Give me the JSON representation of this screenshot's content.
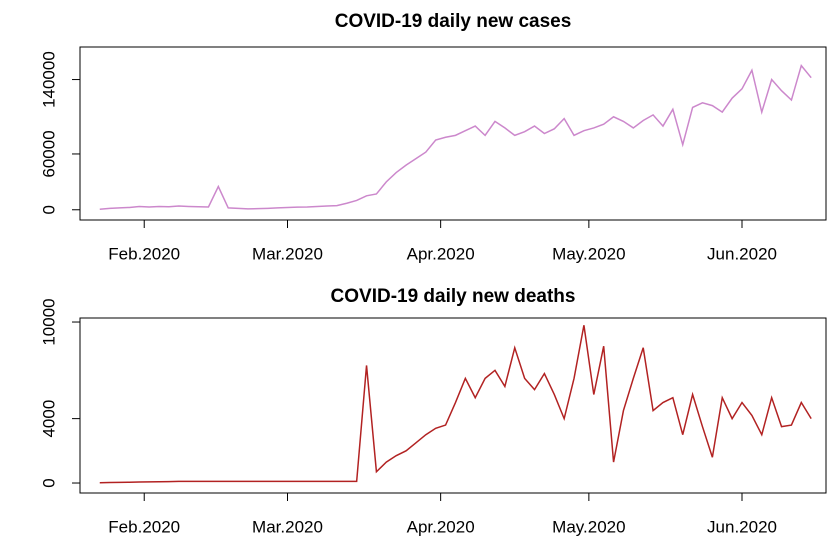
{
  "chart_data": [
    {
      "type": "line",
      "title": "COVID-19 daily new cases",
      "x": [
        22,
        24,
        26,
        28,
        30,
        32,
        34,
        36,
        38,
        40,
        42,
        44,
        46,
        48,
        50,
        52,
        54,
        56,
        58,
        60,
        62,
        64,
        66,
        68,
        70,
        72,
        74,
        76,
        78,
        80,
        82,
        84,
        86,
        88,
        90,
        92,
        94,
        96,
        98,
        100,
        102,
        104,
        106,
        108,
        110,
        112,
        114,
        116,
        118,
        120,
        122,
        124,
        126,
        128,
        130,
        132,
        134,
        136,
        138,
        140,
        142,
        144,
        146,
        148,
        150,
        152,
        154,
        156,
        158,
        160,
        162,
        164,
        166
      ],
      "series": [
        {
          "name": "cases",
          "color": "#cc88cc",
          "values": [
            600,
            1500,
            2000,
            2500,
            3500,
            3000,
            3500,
            3200,
            4000,
            3500,
            3200,
            3000,
            25000,
            2000,
            1500,
            1000,
            1200,
            1500,
            2000,
            2500,
            2800,
            3000,
            3500,
            4000,
            4500,
            7000,
            10000,
            15000,
            17000,
            30000,
            40000,
            48000,
            55000,
            62000,
            75000,
            78000,
            80000,
            85000,
            90000,
            80000,
            95000,
            88000,
            80000,
            84000,
            90000,
            82000,
            87000,
            98000,
            80000,
            85000,
            88000,
            92000,
            100000,
            95000,
            88000,
            96000,
            102000,
            90000,
            108000,
            70000,
            110000,
            115000,
            112000,
            105000,
            120000,
            130000,
            150000,
            105000,
            140000,
            128000,
            118000,
            155000,
            142000
          ]
        }
      ],
      "xlim": [
        18,
        169
      ],
      "xticks": [
        {
          "value": 31,
          "label": "Feb.2020"
        },
        {
          "value": 60,
          "label": "Mar.2020"
        },
        {
          "value": 91,
          "label": "Apr.2020"
        },
        {
          "value": 121,
          "label": "May.2020"
        },
        {
          "value": 152,
          "label": "Jun.2020"
        }
      ],
      "ylim": [
        -11000,
        175000
      ],
      "yticks": [
        0,
        60000,
        140000
      ]
    },
    {
      "type": "line",
      "title": "COVID-19 daily new deaths",
      "x": [
        22,
        24,
        26,
        28,
        30,
        32,
        34,
        36,
        38,
        40,
        42,
        44,
        46,
        48,
        50,
        52,
        54,
        56,
        58,
        60,
        62,
        64,
        66,
        68,
        70,
        72,
        74,
        76,
        78,
        80,
        82,
        84,
        86,
        88,
        90,
        92,
        94,
        96,
        98,
        100,
        102,
        104,
        106,
        108,
        110,
        112,
        114,
        116,
        118,
        120,
        122,
        124,
        126,
        128,
        130,
        132,
        134,
        136,
        138,
        140,
        142,
        144,
        146,
        148,
        150,
        152,
        154,
        156,
        158,
        160,
        162,
        164,
        166
      ],
      "series": [
        {
          "name": "deaths",
          "color": "#b22222",
          "values": [
            20,
            30,
            40,
            50,
            60,
            70,
            80,
            90,
            100,
            100,
            100,
            100,
            100,
            100,
            100,
            100,
            100,
            100,
            100,
            100,
            100,
            100,
            100,
            100,
            100,
            100,
            100,
            7300,
            700,
            1300,
            1700,
            2000,
            2500,
            3000,
            3400,
            3600,
            5000,
            6500,
            5300,
            6500,
            7000,
            6000,
            8400,
            6500,
            5800,
            6800,
            5500,
            4000,
            6500,
            9800,
            5500,
            8500,
            1300,
            4500,
            6500,
            8400,
            4500,
            5000,
            5300,
            3000,
            5500,
            3500,
            1600,
            5300,
            4000,
            5000,
            4200,
            3000,
            5300,
            3500,
            3600,
            5000,
            4000
          ]
        }
      ],
      "xlim": [
        18,
        169
      ],
      "xticks": [
        {
          "value": 31,
          "label": "Feb.2020"
        },
        {
          "value": 60,
          "label": "Mar.2020"
        },
        {
          "value": 91,
          "label": "Apr.2020"
        },
        {
          "value": 121,
          "label": "May.2020"
        },
        {
          "value": 152,
          "label": "Jun.2020"
        }
      ],
      "ylim": [
        -620,
        10250
      ],
      "yticks": [
        0,
        4000,
        10000
      ]
    }
  ]
}
